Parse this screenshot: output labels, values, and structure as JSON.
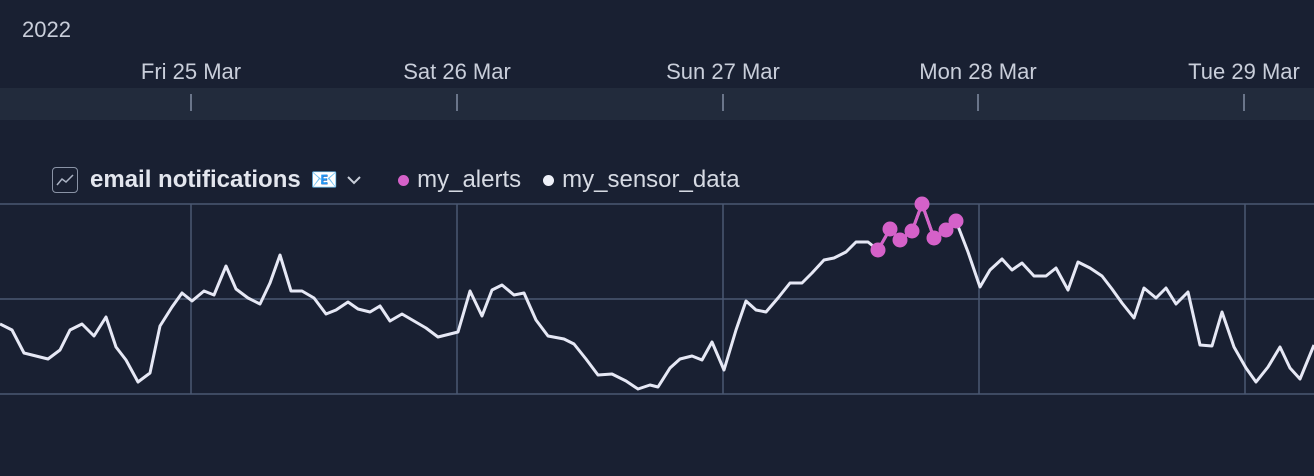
{
  "year_label": "2022",
  "date_axis": {
    "labels": [
      "Fri 25 Mar",
      "Sat 26 Mar",
      "Sun 27 Mar",
      "Mon 28 Mar",
      "Tue 29 Mar"
    ]
  },
  "panel": {
    "title": "email notifications",
    "title_emoji": "📧",
    "legend": [
      {
        "name": "my_alerts",
        "color": "#d561c9"
      },
      {
        "name": "my_sensor_data",
        "color": "#eef0f8"
      }
    ]
  },
  "chart_data": {
    "type": "line",
    "series": [
      {
        "name": "my_sensor_data",
        "color": "#e6e8f5",
        "points": [
          [
            0,
            324
          ],
          [
            12,
            330
          ],
          [
            24,
            353
          ],
          [
            48,
            359
          ],
          [
            60,
            350
          ],
          [
            70,
            330
          ],
          [
            82,
            324
          ],
          [
            94,
            336
          ],
          [
            106,
            317
          ],
          [
            116,
            347
          ],
          [
            126,
            360
          ],
          [
            138,
            382
          ],
          [
            150,
            373
          ],
          [
            160,
            326
          ],
          [
            172,
            307
          ],
          [
            182,
            293
          ],
          [
            192,
            301
          ],
          [
            204,
            291
          ],
          [
            214,
            295
          ],
          [
            226,
            266
          ],
          [
            236,
            289
          ],
          [
            248,
            298
          ],
          [
            260,
            304
          ],
          [
            270,
            283
          ],
          [
            280,
            255
          ],
          [
            291,
            291
          ],
          [
            302,
            291
          ],
          [
            314,
            298
          ],
          [
            326,
            314
          ],
          [
            336,
            310
          ],
          [
            348,
            302
          ],
          [
            358,
            309
          ],
          [
            370,
            312
          ],
          [
            380,
            306
          ],
          [
            390,
            321
          ],
          [
            402,
            314
          ],
          [
            414,
            321
          ],
          [
            426,
            328
          ],
          [
            438,
            337
          ],
          [
            458,
            332
          ],
          [
            470,
            291
          ],
          [
            482,
            316
          ],
          [
            492,
            290
          ],
          [
            502,
            285
          ],
          [
            514,
            295
          ],
          [
            524,
            293
          ],
          [
            536,
            320
          ],
          [
            548,
            336
          ],
          [
            564,
            339
          ],
          [
            574,
            344
          ],
          [
            586,
            359
          ],
          [
            598,
            375
          ],
          [
            612,
            374
          ],
          [
            626,
            381
          ],
          [
            638,
            389
          ],
          [
            650,
            385
          ],
          [
            658,
            387
          ],
          [
            670,
            368
          ],
          [
            680,
            359
          ],
          [
            692,
            356
          ],
          [
            702,
            360
          ],
          [
            712,
            342
          ],
          [
            724,
            370
          ],
          [
            736,
            330
          ],
          [
            746,
            301
          ],
          [
            756,
            310
          ],
          [
            766,
            312
          ],
          [
            778,
            298
          ],
          [
            790,
            283
          ],
          [
            802,
            283
          ],
          [
            812,
            273
          ],
          [
            824,
            260
          ],
          [
            834,
            258
          ],
          [
            846,
            252
          ],
          [
            856,
            242
          ],
          [
            868,
            242
          ],
          [
            878,
            250
          ],
          [
            890,
            229
          ],
          [
            900,
            240
          ],
          [
            912,
            231
          ],
          [
            922,
            204
          ],
          [
            934,
            238
          ],
          [
            946,
            230
          ],
          [
            956,
            221
          ],
          [
            968,
            252
          ],
          [
            980,
            287
          ],
          [
            990,
            270
          ],
          [
            1002,
            259
          ],
          [
            1012,
            270
          ],
          [
            1022,
            263
          ],
          [
            1034,
            276
          ],
          [
            1046,
            276
          ],
          [
            1056,
            268
          ],
          [
            1068,
            290
          ],
          [
            1078,
            262
          ],
          [
            1090,
            268
          ],
          [
            1102,
            276
          ],
          [
            1112,
            289
          ],
          [
            1122,
            303
          ],
          [
            1134,
            318
          ],
          [
            1144,
            288
          ],
          [
            1156,
            298
          ],
          [
            1166,
            288
          ],
          [
            1176,
            304
          ],
          [
            1188,
            292
          ],
          [
            1200,
            345
          ],
          [
            1212,
            346
          ],
          [
            1222,
            312
          ],
          [
            1234,
            347
          ],
          [
            1246,
            368
          ],
          [
            1256,
            382
          ],
          [
            1268,
            367
          ],
          [
            1280,
            347
          ],
          [
            1290,
            368
          ],
          [
            1300,
            379
          ],
          [
            1314,
            345
          ]
        ]
      },
      {
        "name": "my_alerts",
        "color": "#d561c9",
        "points": [
          [
            878,
            250
          ],
          [
            890,
            229
          ],
          [
            900,
            240
          ],
          [
            912,
            231
          ],
          [
            922,
            204
          ],
          [
            934,
            238
          ],
          [
            946,
            230
          ],
          [
            956,
            221
          ]
        ]
      }
    ],
    "x_axis": {
      "type": "time",
      "ticks": [
        "Fri 25 Mar",
        "Sat 26 Mar",
        "Sun 27 Mar",
        "Mon 28 Mar",
        "Tue 29 Mar"
      ]
    },
    "grid": true,
    "legend_placement": "top-left"
  }
}
